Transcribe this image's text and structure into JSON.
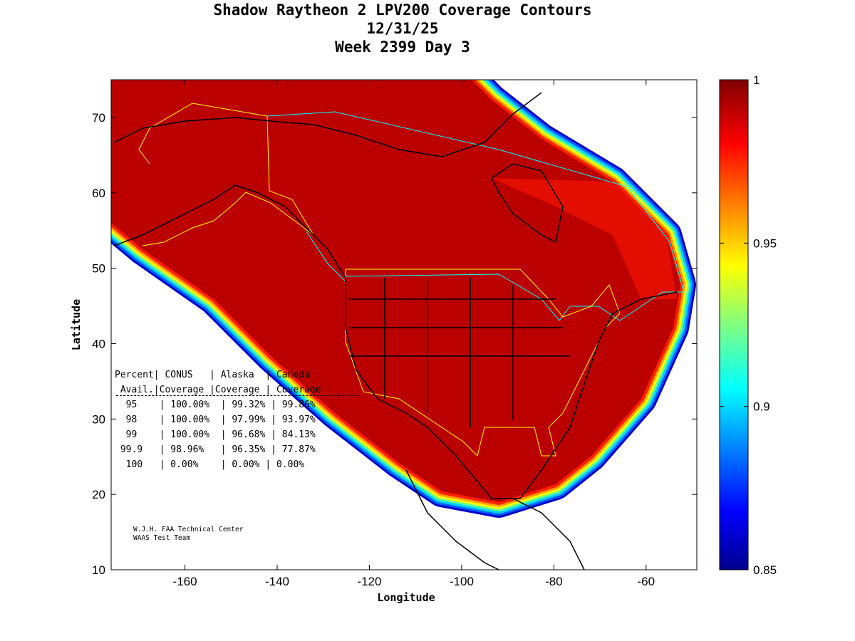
{
  "title": {
    "line1": "Shadow Raytheon 2 LPV200 Coverage Contours",
    "line2": "12/31/25",
    "line3": "Week 2399 Day 3"
  },
  "chart_data": {
    "type": "heatmap",
    "title": "Shadow Raytheon 2 LPV200 Coverage Contours",
    "xlabel": "Longitude",
    "ylabel": "Latitude",
    "xlim": [
      -176,
      -49
    ],
    "ylim": [
      10,
      75
    ],
    "xticks": [
      -160,
      -140,
      -120,
      -100,
      -80,
      -60
    ],
    "yticks": [
      10,
      20,
      30,
      40,
      50,
      60,
      70
    ],
    "colorbar": {
      "min": 0.85,
      "max": 1,
      "ticks": [
        0.85,
        0.9,
        0.95,
        1
      ],
      "tick_labels": [
        "0.85",
        "0.9",
        "0.95",
        "1"
      ],
      "colormap": "jet"
    },
    "table": {
      "header1": [
        "Percent",
        "CONUS",
        "Alaska",
        "Canada"
      ],
      "header2": [
        "Avail.",
        "Coverage",
        "Coverage",
        "Coverage"
      ],
      "rows": [
        [
          "95",
          "100.00%",
          "99.32%",
          "99.86%"
        ],
        [
          "98",
          "100.00%",
          "97.99%",
          "93.97%"
        ],
        [
          "99",
          "100.00%",
          "96.68%",
          "84.13%"
        ],
        [
          "99.9",
          "98.96%",
          "96.35%",
          "77.87%"
        ],
        [
          "100",
          "0.00%",
          "0.00%",
          "0.00%"
        ]
      ]
    },
    "credit": [
      "W.J.H. FAA Technical Center",
      "WAAS Test Team"
    ]
  }
}
